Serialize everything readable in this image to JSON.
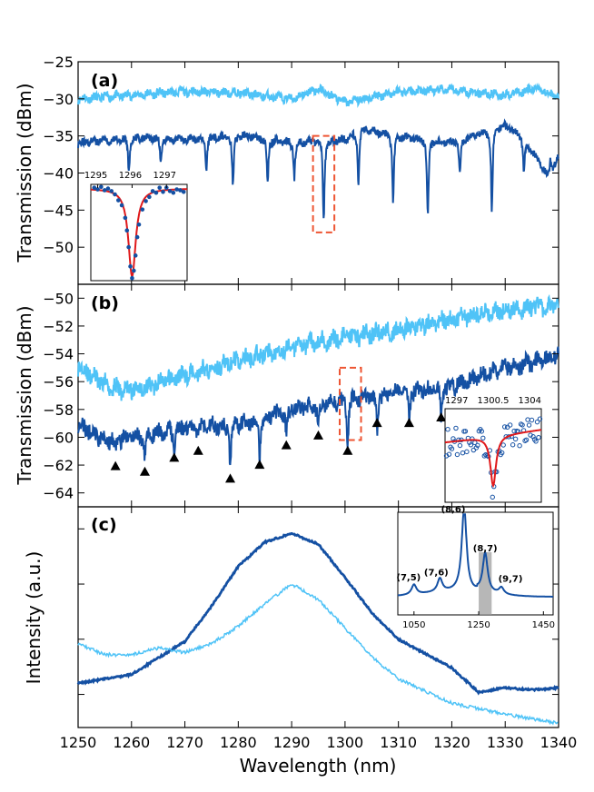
{
  "colors": {
    "dark_blue": "#1450a3",
    "light_blue": "#4fc3f7",
    "fit_red": "#e0191b",
    "highlight_box": "#ee5533",
    "marker": "#000000",
    "shade": "#999999"
  },
  "chart_data": [
    {
      "id": "a",
      "type": "line",
      "panel_label": "(a)",
      "ylabel": "Transmission (dBm)",
      "ylim": [
        -55,
        -25
      ],
      "yticks": [
        -50,
        -45,
        -40,
        -35,
        -30,
        -25
      ],
      "xlim": [
        1250,
        1340
      ],
      "series": [
        {
          "name": "light",
          "color": "light_blue",
          "baseline": -29.6,
          "noise": 0.55,
          "x": [
            1250,
            1260,
            1270,
            1280,
            1290,
            1295,
            1300,
            1310,
            1320,
            1330,
            1336,
            1340
          ],
          "y": [
            -30.0,
            -29.5,
            -29.0,
            -29.2,
            -30.0,
            -28.7,
            -30.5,
            -29.0,
            -28.8,
            -29.5,
            -28.5,
            -29.8
          ]
        },
        {
          "name": "dark",
          "color": "dark_blue",
          "noise": 0.5,
          "x": [
            1250,
            1260,
            1270,
            1280,
            1290,
            1300,
            1303,
            1310,
            1320,
            1330,
            1333,
            1336,
            1338,
            1340
          ],
          "y": [
            -36.0,
            -35.2,
            -35.5,
            -34.8,
            -35.8,
            -35.5,
            -34.0,
            -35.0,
            -35.8,
            -33.5,
            -35.0,
            -38.0,
            -40.5,
            -38.0
          ],
          "dips": [
            [
              1259.5,
              -40.0
            ],
            [
              1265.5,
              -38.5
            ],
            [
              1274.0,
              -39.5
            ],
            [
              1279.0,
              -42.0
            ],
            [
              1285.5,
              -41.5
            ],
            [
              1290.5,
              -40.5
            ],
            [
              1296.0,
              -46.5
            ],
            [
              1302.5,
              -41.5
            ],
            [
              1309.0,
              -44.0
            ],
            [
              1315.5,
              -46.0
            ],
            [
              1321.5,
              -40.5
            ],
            [
              1327.5,
              -45.0
            ],
            [
              1333.5,
              -40.0
            ],
            [
              1338.5,
              -38.0
            ]
          ]
        }
      ],
      "highlight": {
        "x": [
          1294.0,
          1298.0
        ],
        "y": [
          -48.0,
          -35.0
        ]
      },
      "inset": {
        "type": "line",
        "xticklabels": [
          "1295",
          "1296",
          "1297"
        ],
        "xlim": [
          1294.8,
          1297.6
        ],
        "ylim": [
          -53.5,
          -42.0
        ],
        "fit": {
          "center": 1296.0,
          "width": 0.13,
          "depth": 10.5,
          "baseline": -42.5,
          "color": "fit_red"
        },
        "points_x": [
          1294.9,
          1295.0,
          1295.1,
          1295.2,
          1295.3,
          1295.4,
          1295.5,
          1295.6,
          1295.7,
          1295.8,
          1295.85,
          1295.9,
          1295.95,
          1296.0,
          1296.05,
          1296.1,
          1296.15,
          1296.2,
          1296.3,
          1296.4,
          1296.5,
          1296.6,
          1296.7,
          1296.8,
          1296.9,
          1297.0,
          1297.1,
          1297.2,
          1297.3,
          1297.4,
          1297.5
        ],
        "points_y": [
          -42.4,
          -42.6,
          -42.3,
          -42.7,
          -42.5,
          -42.8,
          -43.2,
          -43.9,
          -44.5,
          -46.0,
          -47.5,
          -49.5,
          -51.8,
          -53.2,
          -52.3,
          -50.5,
          -48.3,
          -46.8,
          -45.0,
          -44.0,
          -43.5,
          -42.8,
          -43.0,
          -42.4,
          -42.9,
          -42.4,
          -42.8,
          -43.0,
          -42.6,
          -42.7,
          -42.9
        ]
      }
    },
    {
      "id": "b",
      "type": "line",
      "panel_label": "(b)",
      "ylabel": "Transmission (dBm)",
      "ylim": [
        -65,
        -49
      ],
      "yticks": [
        -64,
        -62,
        -60,
        -58,
        -56,
        -54,
        -52,
        -50
      ],
      "xlim": [
        1250,
        1340
      ],
      "series": [
        {
          "name": "light",
          "color": "light_blue",
          "noise": 0.6,
          "x": [
            1250,
            1254,
            1258,
            1263,
            1270,
            1280,
            1290,
            1300,
            1310,
            1320,
            1330,
            1340
          ],
          "y": [
            -54.8,
            -56.0,
            -56.6,
            -56.4,
            -55.5,
            -54.5,
            -53.5,
            -52.8,
            -52.3,
            -51.5,
            -50.8,
            -50.5
          ]
        },
        {
          "name": "dark",
          "color": "dark_blue",
          "noise": 0.55,
          "x": [
            1250,
            1255,
            1260,
            1270,
            1280,
            1290,
            1300,
            1310,
            1320,
            1330,
            1340
          ],
          "y": [
            -59.0,
            -60.2,
            -60.0,
            -59.3,
            -59.0,
            -58.0,
            -57.3,
            -56.8,
            -56.3,
            -55.0,
            -54.2
          ],
          "dips": [
            [
              1257,
              -61.2
            ],
            [
              1262.5,
              -61.8
            ],
            [
              1268,
              -60.8
            ],
            [
              1272.5,
              -60.3
            ],
            [
              1278.5,
              -62.3
            ],
            [
              1284,
              -61.3
            ],
            [
              1289,
              -60.0
            ],
            [
              1295,
              -59.5
            ],
            [
              1300.5,
              -60.3
            ],
            [
              1306,
              -59.5
            ],
            [
              1312,
              -58.8
            ],
            [
              1318,
              -58.5
            ]
          ]
        }
      ],
      "markers": {
        "x": [
          1257,
          1262.5,
          1268,
          1272.5,
          1278.5,
          1284,
          1289,
          1295,
          1300.5,
          1306,
          1312,
          1318
        ],
        "y": [
          -62.1,
          -62.5,
          -61.5,
          -61.0,
          -63.0,
          -62.0,
          -60.6,
          -59.9,
          -61.0,
          -59.0,
          -59.0,
          -58.6
        ]
      },
      "highlight": {
        "x": [
          1299.0,
          1303.0
        ],
        "y": [
          -60.2,
          -55.0
        ]
      },
      "inset": {
        "type": "line",
        "xticklabels": [
          "1297",
          "1300.5",
          "1304"
        ],
        "xlim": [
          1297,
          1304
        ],
        "ylim": [
          -64.2,
          -58.0
        ],
        "fit": {
          "center": 1300.5,
          "width": 0.25,
          "depth": 3.3,
          "baseline": -59.8,
          "slope": 0.12,
          "color": "fit_red"
        }
      }
    },
    {
      "id": "c",
      "type": "line",
      "panel_label": "(c)",
      "xlabel": "Wavelength (nm)",
      "ylabel": "Intensity (a.u.)",
      "xlim": [
        1250,
        1340
      ],
      "xticks": [
        1250,
        1260,
        1270,
        1280,
        1290,
        1300,
        1310,
        1320,
        1330,
        1340
      ],
      "series": [
        {
          "name": "dark",
          "color": "dark_blue",
          "x": [
            1250,
            1260,
            1270,
            1275,
            1280,
            1285,
            1290,
            1295,
            1300,
            1305,
            1310,
            1320,
            1325,
            1330,
            1335,
            1340
          ],
          "y": [
            0.2,
            0.24,
            0.39,
            0.55,
            0.73,
            0.84,
            0.88,
            0.83,
            0.68,
            0.52,
            0.4,
            0.27,
            0.16,
            0.18,
            0.17,
            0.18
          ]
        },
        {
          "name": "light",
          "color": "light_blue",
          "x": [
            1250,
            1255,
            1260,
            1265,
            1270,
            1275,
            1280,
            1285,
            1290,
            1295,
            1300,
            1305,
            1310,
            1320,
            1330,
            1340
          ],
          "y": [
            0.38,
            0.33,
            0.33,
            0.36,
            0.34,
            0.38,
            0.46,
            0.56,
            0.65,
            0.58,
            0.45,
            0.32,
            0.22,
            0.11,
            0.06,
            0.02
          ]
        }
      ],
      "inset": {
        "type": "line",
        "xlim": [
          1000,
          1480
        ],
        "xticks": [
          1050,
          1250,
          1450
        ],
        "shade": [
          1250,
          1290
        ],
        "peaks": [
          {
            "label": "(7,5)",
            "x": 1050,
            "h": 0.12
          },
          {
            "label": "(7,6)",
            "x": 1130,
            "h": 0.16
          },
          {
            "label": "(8,6)",
            "x": 1205,
            "h": 1.0
          },
          {
            "label": "(8,7)",
            "x": 1270,
            "h": 0.47
          },
          {
            "label": "(9,7)",
            "x": 1320,
            "h": 0.08
          }
        ]
      }
    }
  ]
}
